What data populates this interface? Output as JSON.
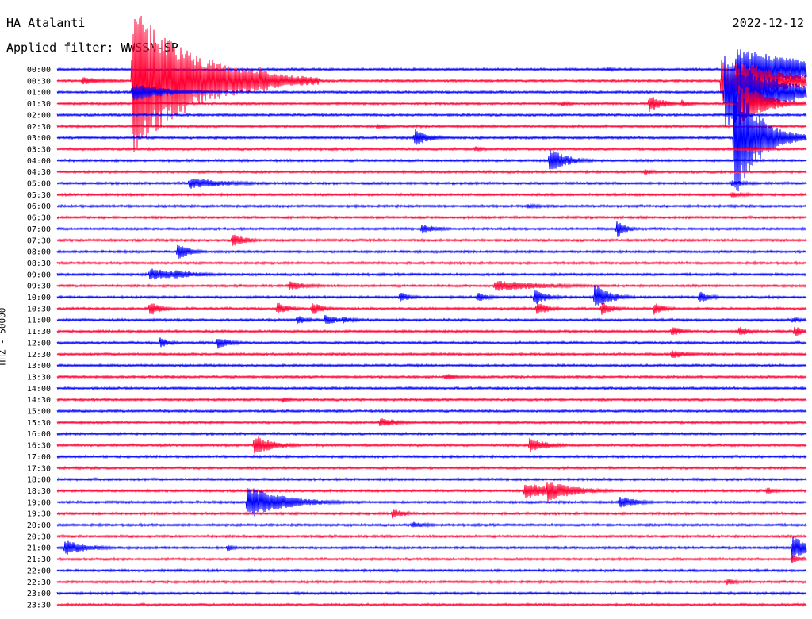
{
  "header": {
    "station": "HA Atalanti",
    "filter": "Applied filter: WWSSN-SP",
    "date": "2022-12-12"
  },
  "y_axis_label": "HHZ - 50000",
  "colors": {
    "odd_trace": "#0000ff",
    "even_trace": "#ff0033"
  },
  "chart_data": {
    "type": "line",
    "title": "HA Atalanti",
    "subtitle": "Applied filter: WWSSN-SP",
    "channel_label": "HHZ - 50000",
    "row_labels": [
      "00:00",
      "00:30",
      "01:00",
      "01:30",
      "02:00",
      "02:30",
      "03:00",
      "03:30",
      "04:00",
      "04:30",
      "05:00",
      "05:30",
      "06:00",
      "06:30",
      "07:00",
      "07:30",
      "08:00",
      "08:30",
      "09:00",
      "09:30",
      "10:00",
      "10:30",
      "11:00",
      "11:30",
      "12:00",
      "12:30",
      "13:00",
      "13:30",
      "14:00",
      "14:30",
      "15:00",
      "15:30",
      "16:00",
      "16:30",
      "17:00",
      "17:30",
      "18:00",
      "18:30",
      "19:00",
      "19:30",
      "20:00",
      "20:30",
      "21:00",
      "21:30",
      "22:00",
      "22:30",
      "23:00",
      "23:30"
    ],
    "row_minutes": 30,
    "events": [
      {
        "row": 0,
        "min": 22.0,
        "amp": 3,
        "dur": 0.6
      },
      {
        "row": 0,
        "min": 27.2,
        "amp": 28,
        "dur": 3.5
      },
      {
        "row": 0,
        "min": 29.1,
        "amp": 14,
        "dur": 1.5
      },
      {
        "row": 1,
        "min": 1.0,
        "amp": 5,
        "dur": 1.2
      },
      {
        "row": 1,
        "min": 3.0,
        "amp": 95,
        "dur": 2.5
      },
      {
        "row": 1,
        "min": 8.1,
        "amp": 18,
        "dur": 0.8
      },
      {
        "row": 1,
        "min": 26.6,
        "amp": 30,
        "dur": 2.5
      },
      {
        "row": 1,
        "min": 27.4,
        "amp": 26,
        "dur": 2.0
      },
      {
        "row": 1,
        "min": 28.7,
        "amp": 7,
        "dur": 0.7
      },
      {
        "row": 2,
        "min": 3.0,
        "amp": 12,
        "dur": 1.5
      },
      {
        "row": 2,
        "min": 26.7,
        "amp": 48,
        "dur": 2.0
      },
      {
        "row": 3,
        "min": 20.2,
        "amp": 4,
        "dur": 0.5
      },
      {
        "row": 3,
        "min": 23.7,
        "amp": 12,
        "dur": 0.6
      },
      {
        "row": 3,
        "min": 25.0,
        "amp": 5,
        "dur": 0.5
      },
      {
        "row": 3,
        "min": 27.3,
        "amp": 30,
        "dur": 1.0
      },
      {
        "row": 5,
        "min": 12.8,
        "amp": 4,
        "dur": 0.5
      },
      {
        "row": 6,
        "min": 14.3,
        "amp": 12,
        "dur": 0.6
      },
      {
        "row": 6,
        "min": 27.1,
        "amp": 80,
        "dur": 1.0
      },
      {
        "row": 7,
        "min": 16.7,
        "amp": 4,
        "dur": 0.5
      },
      {
        "row": 7,
        "min": 27.6,
        "amp": 3,
        "dur": 1.0
      },
      {
        "row": 8,
        "min": 19.7,
        "amp": 17,
        "dur": 0.7
      },
      {
        "row": 9,
        "min": 23.5,
        "amp": 4,
        "dur": 0.5
      },
      {
        "row": 10,
        "min": 5.3,
        "amp": 7,
        "dur": 1.8
      },
      {
        "row": 10,
        "min": 27.0,
        "amp": 4,
        "dur": 1.0
      },
      {
        "row": 11,
        "min": 27.0,
        "amp": 4,
        "dur": 1.0
      },
      {
        "row": 12,
        "min": 18.8,
        "amp": 3,
        "dur": 1.0
      },
      {
        "row": 14,
        "min": 14.6,
        "amp": 6,
        "dur": 0.8
      },
      {
        "row": 14,
        "min": 22.4,
        "amp": 12,
        "dur": 0.4
      },
      {
        "row": 15,
        "min": 7.0,
        "amp": 9,
        "dur": 0.6
      },
      {
        "row": 16,
        "min": 4.8,
        "amp": 12,
        "dur": 0.5
      },
      {
        "row": 18,
        "min": 3.7,
        "amp": 8,
        "dur": 1.5
      },
      {
        "row": 18,
        "min": 4.7,
        "amp": 6,
        "dur": 1.2
      },
      {
        "row": 19,
        "min": 9.3,
        "amp": 6,
        "dur": 1.0
      },
      {
        "row": 19,
        "min": 17.5,
        "amp": 7,
        "dur": 2.5
      },
      {
        "row": 20,
        "min": 13.7,
        "amp": 7,
        "dur": 0.5
      },
      {
        "row": 20,
        "min": 16.8,
        "amp": 7,
        "dur": 0.5
      },
      {
        "row": 20,
        "min": 19.1,
        "amp": 10,
        "dur": 0.6
      },
      {
        "row": 20,
        "min": 21.5,
        "amp": 20,
        "dur": 0.6
      },
      {
        "row": 20,
        "min": 25.7,
        "amp": 8,
        "dur": 0.5
      },
      {
        "row": 21,
        "min": 3.7,
        "amp": 10,
        "dur": 0.5
      },
      {
        "row": 21,
        "min": 8.8,
        "amp": 9,
        "dur": 0.5
      },
      {
        "row": 21,
        "min": 10.2,
        "amp": 9,
        "dur": 0.5
      },
      {
        "row": 21,
        "min": 19.2,
        "amp": 10,
        "dur": 0.5
      },
      {
        "row": 21,
        "min": 21.8,
        "amp": 9,
        "dur": 0.5
      },
      {
        "row": 21,
        "min": 23.9,
        "amp": 8,
        "dur": 0.5
      },
      {
        "row": 22,
        "min": 9.6,
        "amp": 6,
        "dur": 0.5
      },
      {
        "row": 22,
        "min": 10.7,
        "amp": 8,
        "dur": 0.5
      },
      {
        "row": 22,
        "min": 11.4,
        "amp": 5,
        "dur": 0.6
      },
      {
        "row": 22,
        "min": 29.4,
        "amp": 4,
        "dur": 0.6
      },
      {
        "row": 23,
        "min": 24.6,
        "amp": 7,
        "dur": 0.5
      },
      {
        "row": 23,
        "min": 27.3,
        "amp": 7,
        "dur": 0.5
      },
      {
        "row": 23,
        "min": 29.5,
        "amp": 7,
        "dur": 0.5
      },
      {
        "row": 24,
        "min": 4.1,
        "amp": 7,
        "dur": 0.5
      },
      {
        "row": 24,
        "min": 6.4,
        "amp": 8,
        "dur": 0.6
      },
      {
        "row": 25,
        "min": 24.6,
        "amp": 6,
        "dur": 0.8
      },
      {
        "row": 27,
        "min": 15.5,
        "amp": 5,
        "dur": 0.6
      },
      {
        "row": 29,
        "min": 9.0,
        "amp": 4,
        "dur": 0.5
      },
      {
        "row": 31,
        "min": 12.9,
        "amp": 7,
        "dur": 0.8
      },
      {
        "row": 33,
        "min": 7.9,
        "amp": 14,
        "dur": 0.8
      },
      {
        "row": 33,
        "min": 18.9,
        "amp": 10,
        "dur": 0.8
      },
      {
        "row": 37,
        "min": 18.7,
        "amp": 12,
        "dur": 1.2
      },
      {
        "row": 37,
        "min": 19.6,
        "amp": 14,
        "dur": 1.2
      },
      {
        "row": 37,
        "min": 28.4,
        "amp": 5,
        "dur": 0.5
      },
      {
        "row": 38,
        "min": 7.6,
        "amp": 22,
        "dur": 1.5
      },
      {
        "row": 38,
        "min": 22.5,
        "amp": 8,
        "dur": 0.8
      },
      {
        "row": 39,
        "min": 13.4,
        "amp": 7,
        "dur": 0.6
      },
      {
        "row": 40,
        "min": 14.2,
        "amp": 5,
        "dur": 0.7
      },
      {
        "row": 42,
        "min": 0.3,
        "amp": 10,
        "dur": 1.0
      },
      {
        "row": 42,
        "min": 6.8,
        "amp": 5,
        "dur": 0.4
      },
      {
        "row": 42,
        "min": 29.4,
        "amp": 14,
        "dur": 1.2
      },
      {
        "row": 43,
        "min": 29.4,
        "amp": 6,
        "dur": 0.5
      },
      {
        "row": 45,
        "min": 26.8,
        "amp": 5,
        "dur": 0.5
      }
    ]
  }
}
